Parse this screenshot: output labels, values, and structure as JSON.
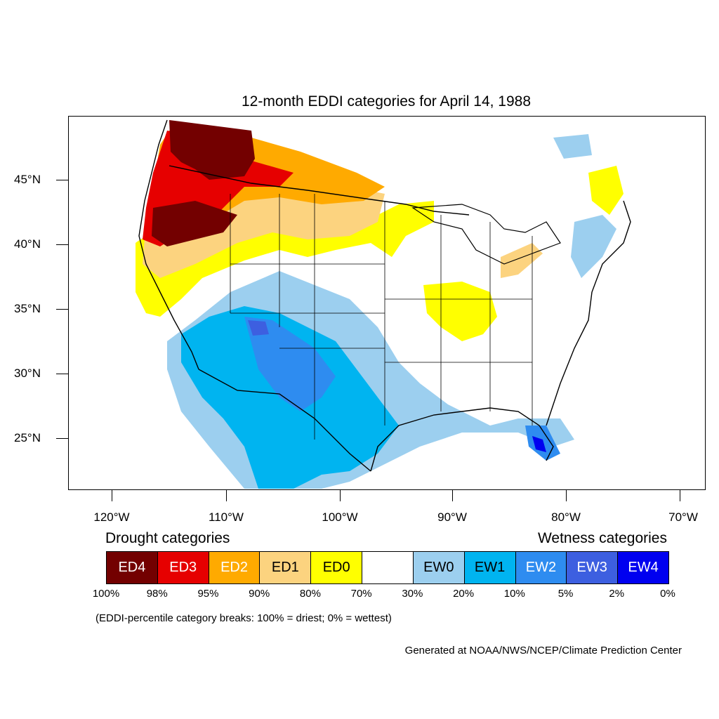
{
  "title": "12-month EDDI categories for April 14, 1988",
  "map": {
    "lat_labels": [
      "45°N",
      "40°N",
      "35°N",
      "30°N",
      "25°N"
    ],
    "lon_labels": [
      "120°W",
      "110°W",
      "100°W",
      "90°W",
      "80°W",
      "70°W"
    ],
    "regions": [
      "Drought categories over the Northwest and northern Plains",
      "Wetness categories over the Southwest, Texas and Florida"
    ]
  },
  "legend": {
    "drought_heading": "Drought categories",
    "wetness_heading": "Wetness categories",
    "boxes": [
      {
        "label": "ED4",
        "color": "#730000",
        "text_color": "#ffffff"
      },
      {
        "label": "ED3",
        "color": "#e60000",
        "text_color": "#ffffff"
      },
      {
        "label": "ED2",
        "color": "#ffaa00",
        "text_color": "#ffffff"
      },
      {
        "label": "ED1",
        "color": "#fcd37f",
        "text_color": "#000000"
      },
      {
        "label": "ED0",
        "color": "#ffff00",
        "text_color": "#000000"
      },
      {
        "label": "",
        "color": "#ffffff",
        "text_color": "#000000"
      },
      {
        "label": "EW0",
        "color": "#9ccfef",
        "text_color": "#000000"
      },
      {
        "label": "EW1",
        "color": "#00b4f0",
        "text_color": "#000000"
      },
      {
        "label": "EW2",
        "color": "#2e8cf0",
        "text_color": "#ffffff"
      },
      {
        "label": "EW3",
        "color": "#3d5fe0",
        "text_color": "#ffffff"
      },
      {
        "label": "EW4",
        "color": "#0000f0",
        "text_color": "#ffffff"
      }
    ],
    "percent_labels": [
      "100%",
      "98%",
      "95%",
      "90%",
      "80%",
      "70%",
      "30%",
      "20%",
      "10%",
      "5%",
      "2%",
      "0%"
    ]
  },
  "note": "(EDDI-percentile category breaks: 100% = driest; 0% = wettest)",
  "credit": "Generated at NOAA/NWS/NCEP/Climate Prediction Center"
}
